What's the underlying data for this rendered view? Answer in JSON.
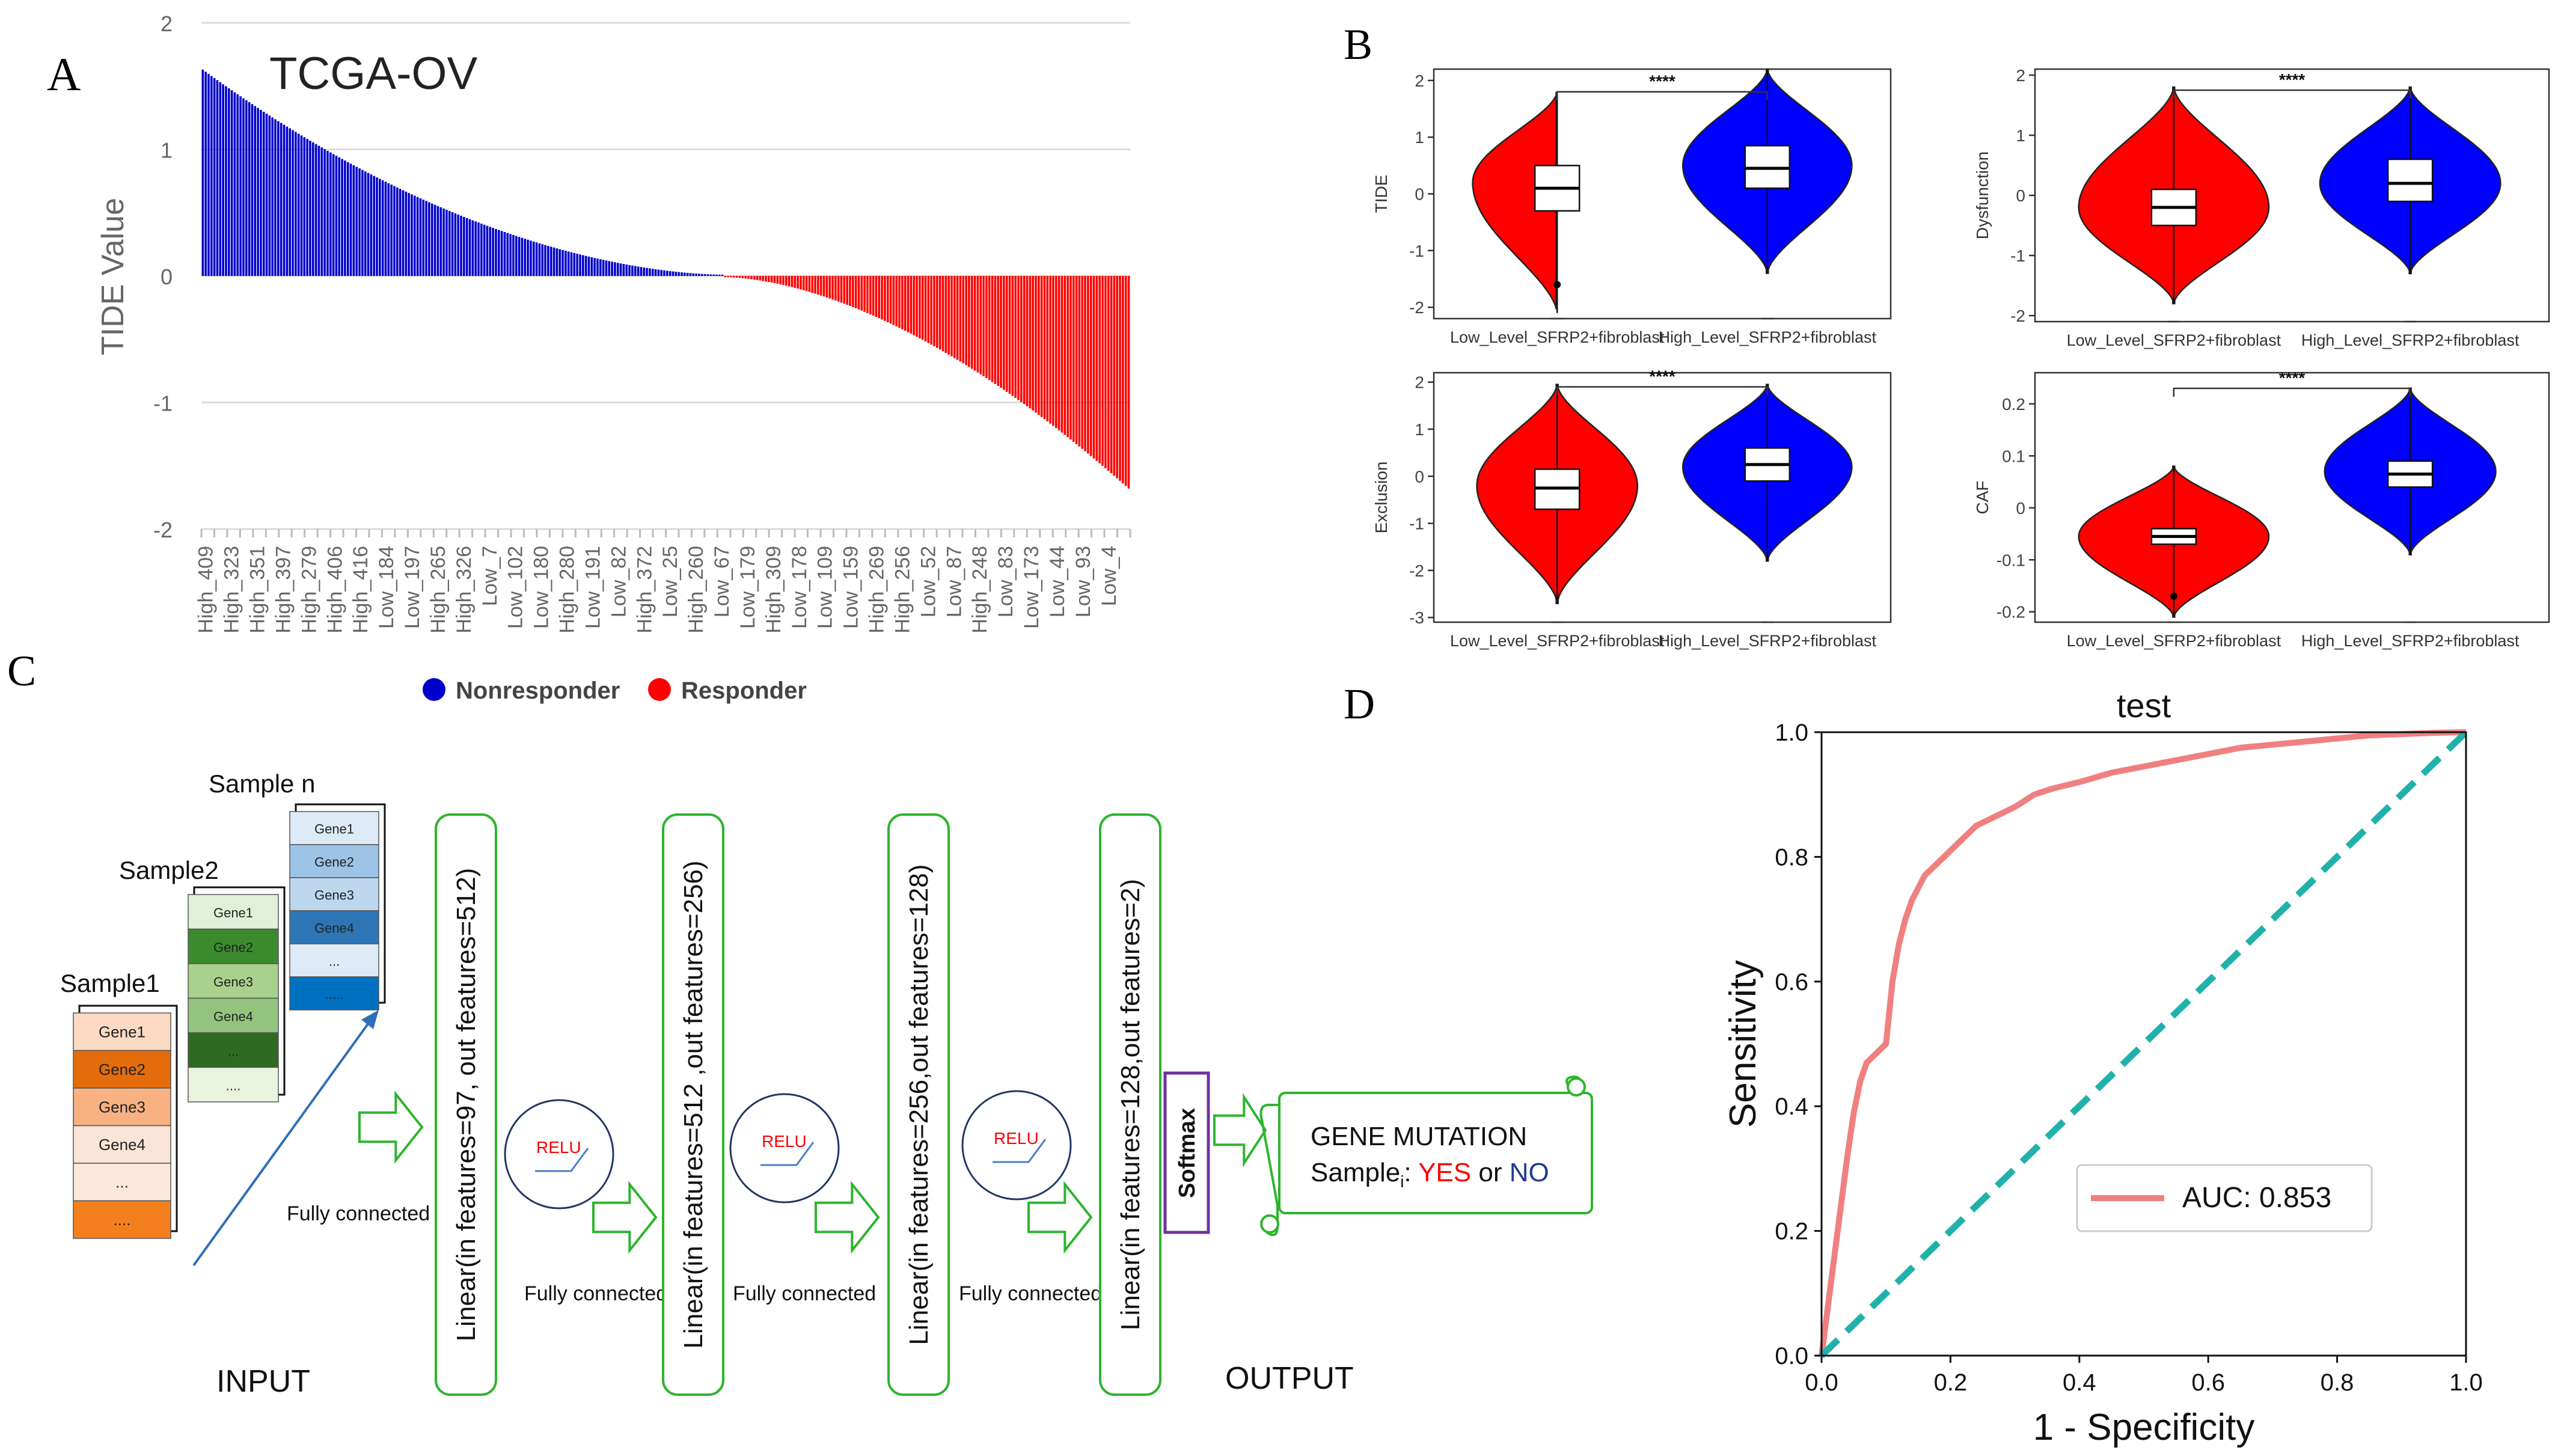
{
  "panel_labels": {
    "a": "A",
    "b": "B",
    "c": "C",
    "d": "D"
  },
  "colors": {
    "nonresponder": "#0000CC",
    "responder": "#FF0000",
    "violin_low": "#FF0000",
    "violin_high": "#0000FF",
    "green_box": "#2DB52D",
    "purple_box": "#7030A0",
    "roc": "#F08080",
    "diag": "#20B2AA"
  },
  "chart_data": [
    {
      "id": "A",
      "type": "bar",
      "title": "TCGA-OV",
      "ylabel": "TIDE Value",
      "ylim": [
        -2,
        2
      ],
      "yticks": [
        2,
        1,
        0,
        -1,
        -2
      ],
      "n_bars": 320,
      "max_value": 1.63,
      "min_value": -1.68,
      "zero_cross_index": 180,
      "tick_labels": [
        "High_409",
        "High_323",
        "High_351",
        "High_397",
        "High_279",
        "High_406",
        "High_416",
        "Low_184",
        "Low_197",
        "High_265",
        "High_326",
        "Low_7",
        "Low_102",
        "Low_180",
        "High_280",
        "Low_191",
        "Low_82",
        "High_372",
        "Low_25",
        "High_260",
        "Low_67",
        "Low_179",
        "High_309",
        "Low_178",
        "Low_109",
        "Low_159",
        "High_269",
        "High_256",
        "Low_52",
        "Low_87",
        "High_248",
        "Low_83",
        "Low_173",
        "Low_44",
        "Low_93",
        "Low_4"
      ],
      "legend": [
        {
          "name": "Nonresponder"
        },
        {
          "name": "Responder"
        }
      ]
    },
    {
      "id": "B",
      "type": "violin",
      "categories": [
        "Low_Level_SFRP2+fibroblast",
        "High_Level_SFRP2+fibroblast"
      ],
      "significance": "****",
      "plots": [
        {
          "ylabel": "TIDE",
          "ylim": [
            -2.2,
            2.2
          ],
          "yticks": [
            2,
            1,
            0,
            -1,
            -2
          ],
          "low": {
            "median": 0.1,
            "q1": -0.3,
            "q3": 0.5,
            "min": -2.1,
            "max": 1.8,
            "peak": 0.2,
            "width": 1.0,
            "outlier": -1.6
          },
          "high": {
            "median": 0.45,
            "q1": 0.1,
            "q3": 0.85,
            "min": -1.4,
            "max": 2.2,
            "peak": 0.5,
            "width": 1.0
          },
          "bracket_y": 1.8
        },
        {
          "ylabel": "Dysfunction",
          "ylim": [
            -2.1,
            2.1
          ],
          "yticks": [
            2,
            1,
            0,
            -1,
            -2
          ],
          "low": {
            "median": -0.2,
            "q1": -0.5,
            "q3": 0.1,
            "min": -1.8,
            "max": 1.8,
            "peak": -0.2,
            "width": 1.0
          },
          "high": {
            "median": 0.2,
            "q1": -0.1,
            "q3": 0.6,
            "min": -1.3,
            "max": 1.8,
            "peak": 0.2,
            "width": 0.95
          },
          "bracket_y": 1.75
        },
        {
          "ylabel": "Exclusion",
          "ylim": [
            -3.1,
            2.2
          ],
          "yticks": [
            2,
            1,
            0,
            -1,
            -2,
            -3
          ],
          "low": {
            "median": -0.25,
            "q1": -0.7,
            "q3": 0.15,
            "min": -2.7,
            "max": 1.95,
            "peak": -0.2,
            "width": 0.95
          },
          "high": {
            "median": 0.25,
            "q1": -0.1,
            "q3": 0.6,
            "min": -1.8,
            "max": 1.95,
            "peak": 0.2,
            "width": 1.0
          },
          "bracket_y": 1.9
        },
        {
          "ylabel": "CAF",
          "ylim": [
            -0.22,
            0.26
          ],
          "yticks": [
            0.2,
            0.1,
            0.0,
            -0.1,
            -0.2
          ],
          "low": {
            "median": -0.055,
            "q1": -0.07,
            "q3": -0.04,
            "min": -0.21,
            "max": 0.08,
            "peak": -0.055,
            "width": 1.0,
            "outlier": -0.17
          },
          "high": {
            "median": 0.065,
            "q1": 0.04,
            "q3": 0.09,
            "min": -0.09,
            "max": 0.23,
            "peak": 0.07,
            "width": 0.9
          },
          "bracket_y": 0.23
        }
      ]
    },
    {
      "id": "D",
      "type": "line",
      "title": "test",
      "xlabel": "1 - Specificity",
      "ylabel": "Sensitivity",
      "xlim": [
        0,
        1
      ],
      "ylim": [
        0,
        1
      ],
      "ticks": [
        "0.0",
        "0.2",
        "0.4",
        "0.6",
        "0.8",
        "1.0"
      ],
      "legend": "AUC: 0.853",
      "series": [
        {
          "name": "ROC",
          "x": [
            0,
            0.005,
            0.01,
            0.02,
            0.03,
            0.04,
            0.05,
            0.06,
            0.07,
            0.08,
            0.09,
            0.1,
            0.11,
            0.12,
            0.13,
            0.14,
            0.15,
            0.16,
            0.17,
            0.18,
            0.2,
            0.22,
            0.24,
            0.26,
            0.28,
            0.3,
            0.33,
            0.36,
            0.4,
            0.45,
            0.5,
            0.55,
            0.6,
            0.65,
            0.7,
            0.75,
            0.8,
            0.85,
            0.9,
            0.95,
            1.0
          ],
          "y": [
            0,
            0.04,
            0.08,
            0.16,
            0.24,
            0.32,
            0.39,
            0.44,
            0.47,
            0.48,
            0.49,
            0.5,
            0.6,
            0.66,
            0.7,
            0.73,
            0.75,
            0.77,
            0.78,
            0.79,
            0.81,
            0.83,
            0.85,
            0.86,
            0.87,
            0.88,
            0.9,
            0.91,
            0.92,
            0.935,
            0.945,
            0.955,
            0.965,
            0.975,
            0.98,
            0.985,
            0.99,
            0.995,
            0.997,
            0.999,
            1.0
          ]
        },
        {
          "name": "diagonal",
          "x": [
            0,
            1
          ],
          "y": [
            0,
            1
          ]
        }
      ]
    }
  ],
  "diagram": {
    "samples": [
      {
        "title": "Sample1",
        "genes": [
          "Gene1",
          "Gene2",
          "Gene3",
          "Gene4",
          "...",
          "...."
        ]
      },
      {
        "title": "Sample2",
        "genes": [
          "Gene1",
          "Gene2",
          "Gene3",
          "Gene4",
          "...",
          "...."
        ]
      },
      {
        "title": "Sample n",
        "genes": [
          "Gene1",
          "Gene2",
          "Gene3",
          "Gene4",
          "...",
          "....."
        ]
      }
    ],
    "fully_connected": "Fully connected",
    "relu": "RELU",
    "layers": [
      "Linear(in features=97, out features=512)",
      "Linear(in features=512 ,out features=256)",
      "Linear(in features=256,out features=128)",
      "Linear(in features=128,out features=2)"
    ],
    "softmax": "Softmax",
    "output_title": "GENE MUTATION",
    "output_sample": "Sample",
    "output_sub": "i",
    "output_colon": ": ",
    "output_yes": "YES",
    "output_or": " or ",
    "output_no": "NO",
    "input_label": "INPUT",
    "output_label": "OUTPUT"
  }
}
